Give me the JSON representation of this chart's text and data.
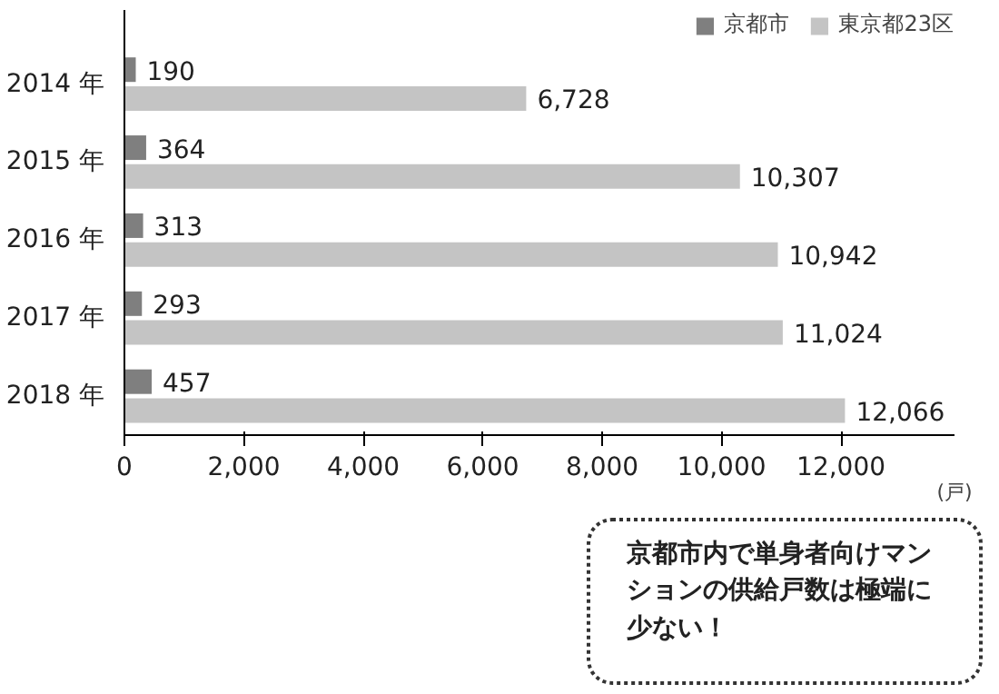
{
  "chart_data": {
    "type": "bar",
    "orientation": "horizontal",
    "categories": [
      "2014 年",
      "2015 年",
      "2016 年",
      "2017 年",
      "2018 年"
    ],
    "series": [
      {
        "name": "京都市",
        "color": "#7f7f7f",
        "values": [
          190,
          364,
          313,
          293,
          457
        ],
        "value_labels": [
          "190",
          "364",
          "313",
          "293",
          "457"
        ]
      },
      {
        "name": "東京都23区",
        "color": "#c4c4c4",
        "values": [
          6728,
          10307,
          10942,
          11024,
          12066
        ],
        "value_labels": [
          "6,728",
          "10,307",
          "10,942",
          "11,024",
          "12,066"
        ]
      }
    ],
    "xlim": [
      0,
      13900
    ],
    "xticks": [
      {
        "value": 0,
        "label": "0"
      },
      {
        "value": 2000,
        "label": "2,000"
      },
      {
        "value": 4000,
        "label": "4,000"
      },
      {
        "value": 6000,
        "label": "6,000"
      },
      {
        "value": 8000,
        "label": "8,000"
      },
      {
        "value": 10000,
        "label": "10,000"
      },
      {
        "value": 12000,
        "label": "12,000"
      }
    ],
    "xlabel": "(戸)",
    "legend": "top right",
    "grid": false,
    "annotations": [
      "京都市内で単身者向けマンションの供給戸数は極端に少ない！"
    ]
  }
}
